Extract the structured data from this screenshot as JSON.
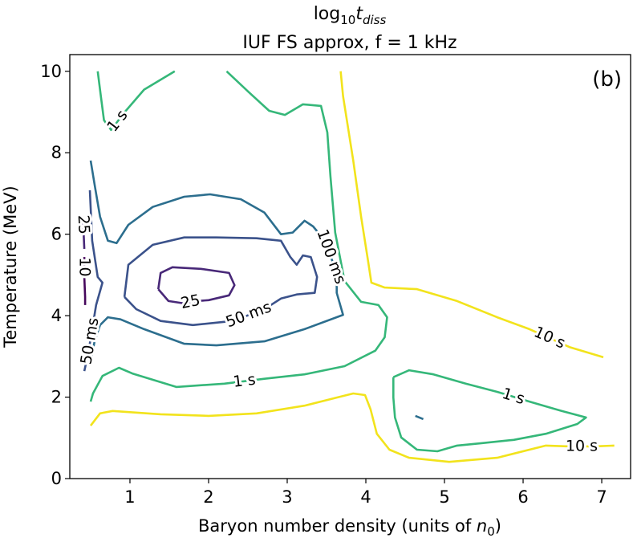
{
  "chart_data": {
    "type": "contour",
    "title": {
      "text": "log",
      "sub": "10",
      "var": "t",
      "var_sub": "diss"
    },
    "subtitle": "IUF FS approx, f = 1 kHz",
    "xlabel": {
      "text": "Baryon number density (units of ",
      "var": "n",
      "sub": "0",
      "close": ")"
    },
    "ylabel": "Temperature (MeV)",
    "annotation": "(b)",
    "xlim": [
      0.235,
      7.367
    ],
    "ylim": [
      0,
      10.41
    ],
    "xticks": [
      1,
      2,
      3,
      4,
      5,
      6,
      7
    ],
    "yticks": [
      0,
      2,
      4,
      6,
      8,
      10
    ],
    "series": [
      {
        "name": "10",
        "color": "#46085c",
        "lines": [
          {
            "x": [
              0.42,
              0.42,
              0.43,
              0.43
            ],
            "y": [
              5.44,
              4.95,
              4.46,
              4.26
            ]
          }
        ]
      },
      {
        "name": "25",
        "color": "#482878",
        "lines": [
          {
            "x": [
              1.36,
              1.39,
              1.54,
              1.9,
              2.26,
              2.33,
              2.26,
              2.0,
              1.85,
              1.69,
              1.49,
              1.36
            ],
            "y": [
              4.65,
              5.05,
              5.19,
              5.15,
              5.05,
              4.75,
              4.5,
              4.38,
              4.36,
              4.3,
              4.36,
              4.65
            ]
          },
          {
            "x": [
              0.4,
              0.41,
              0.42
            ],
            "y": [
              6.43,
              6.04,
              5.64
            ]
          }
        ]
      },
      {
        "name": "50 ms",
        "color": "#3b528b",
        "lines": [
          {
            "x": [
              0.93,
              0.98,
              1.29,
              1.69,
              2.1,
              2.61,
              2.92,
              3.04,
              3.12,
              3.2,
              3.3,
              3.38,
              3.35,
              3.12,
              2.92,
              2.71,
              2.31,
              1.8,
              1.39,
              1.08,
              0.93
            ],
            "y": [
              4.46,
              5.25,
              5.74,
              5.92,
              5.92,
              5.9,
              5.84,
              5.44,
              5.25,
              5.48,
              5.44,
              4.95,
              4.56,
              4.52,
              4.42,
              4.16,
              3.87,
              3.77,
              3.87,
              4.16,
              4.46
            ]
          },
          {
            "x": [
              0.49,
              0.52,
              0.59,
              0.65,
              0.57,
              0.52,
              0.47,
              0.42
            ],
            "y": [
              7.08,
              5.84,
              4.95,
              4.81,
              4.26,
              3.67,
              3.08,
              2.64
            ]
          }
        ]
      },
      {
        "name": "100 ms",
        "color": "#2c6e8e",
        "lines": [
          {
            "x": [
              0.5,
              0.55,
              0.62,
              0.72,
              0.83,
              0.98,
              1.29,
              1.69,
              2.02,
              2.41,
              2.71,
              2.92,
              3.07,
              3.22,
              3.33,
              3.48,
              3.63,
              3.63,
              3.71,
              3.22,
              2.71,
              2.1,
              1.69,
              1.18,
              0.88,
              0.72,
              0.62,
              0.55,
              0.5
            ],
            "y": [
              7.81,
              7.22,
              6.43,
              5.84,
              5.78,
              6.23,
              6.67,
              6.92,
              6.98,
              6.86,
              6.53,
              6.0,
              6.04,
              6.33,
              6.19,
              5.84,
              5.05,
              4.56,
              4.02,
              3.67,
              3.37,
              3.27,
              3.31,
              3.67,
              3.91,
              3.96,
              3.77,
              3.37,
              2.88
            ]
          },
          {
            "x": [
              4.63,
              4.73
            ],
            "y": [
              1.54,
              1.46
            ]
          }
        ]
      },
      {
        "name": "1 s",
        "color": "#35b779",
        "lines": [
          {
            "x": [
              0.59,
              0.63,
              0.67,
              0.76,
              0.93,
              1.18,
              1.57
            ],
            "y": [
              10.0,
              9.39,
              8.8,
              8.56,
              8.99,
              9.55,
              10.0
            ]
          },
          {
            "x": [
              2.23,
              2.51,
              2.77,
              2.97,
              3.2,
              3.43,
              3.51,
              3.55,
              3.61,
              3.73,
              3.94,
              4.16,
              4.27,
              4.24,
              4.12,
              3.73,
              3.22,
              2.71,
              2.2,
              1.59,
              1.03,
              0.86,
              0.65,
              0.53,
              0.5
            ],
            "y": [
              10.0,
              9.49,
              9.03,
              8.93,
              9.19,
              9.15,
              8.5,
              7.42,
              6.04,
              4.85,
              4.34,
              4.26,
              3.96,
              3.47,
              3.14,
              2.76,
              2.56,
              2.45,
              2.33,
              2.25,
              2.58,
              2.72,
              2.52,
              2.09,
              1.89
            ]
          },
          {
            "x": [
              4.35,
              4.55,
              4.86,
              5.27,
              5.67,
              6.08,
              6.49,
              6.8,
              6.69,
              6.29,
              5.88,
              5.47,
              5.16,
              4.91,
              4.65,
              4.45,
              4.37,
              4.35,
              4.35
            ],
            "y": [
              2.49,
              2.66,
              2.56,
              2.33,
              2.13,
              1.89,
              1.66,
              1.5,
              1.34,
              1.1,
              0.95,
              0.87,
              0.81,
              0.67,
              0.71,
              1.01,
              1.5,
              1.99,
              2.49
            ]
          }
        ]
      },
      {
        "name": "10 s",
        "color": "#f2e31c",
        "lines": [
          {
            "x": [
              3.68,
              3.71,
              3.84,
              3.94,
              4.02,
              4.07,
              4.24,
              4.65,
              5.16,
              5.67,
              6.08,
              6.59,
              7.02
            ],
            "y": [
              10.0,
              9.39,
              7.81,
              6.43,
              5.44,
              4.81,
              4.69,
              4.65,
              4.36,
              3.96,
              3.67,
              3.23,
              2.98
            ]
          },
          {
            "x": [
              0.5,
              0.62,
              0.78,
              1.39,
              2.0,
              2.61,
              3.22,
              3.63,
              3.84,
              3.99,
              4.06,
              4.14,
              4.3,
              4.55,
              5.06,
              5.67,
              6.29,
              6.59,
              6.9,
              7.16
            ],
            "y": [
              1.3,
              1.6,
              1.66,
              1.58,
              1.54,
              1.6,
              1.79,
              1.99,
              2.09,
              2.05,
              1.7,
              1.1,
              0.71,
              0.51,
              0.41,
              0.51,
              0.81,
              0.79,
              0.79,
              0.81
            ]
          }
        ]
      }
    ]
  }
}
